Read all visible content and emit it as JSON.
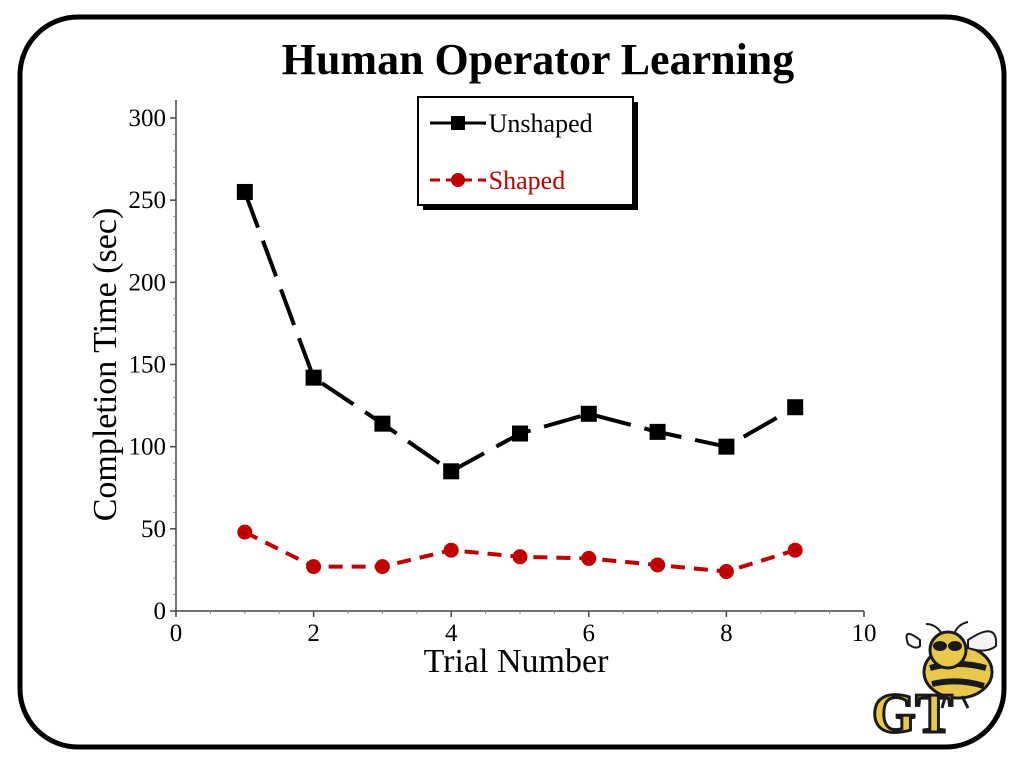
{
  "slide": {
    "title": "Human Operator Learning",
    "logo": {
      "name": "yellow-jacket-gt-logo",
      "text": "GT",
      "colors": [
        "#e8c84a",
        "#1a1a1a"
      ]
    }
  },
  "chart_data": {
    "type": "line",
    "title": "Human Operator Learning",
    "xlabel": "Trial Number",
    "ylabel": "Completion Time (sec)",
    "xlim": [
      0,
      10
    ],
    "ylim": [
      0,
      300
    ],
    "xticks": [
      0,
      2,
      4,
      6,
      8,
      10
    ],
    "yticks": [
      0,
      50,
      100,
      150,
      200,
      250,
      300
    ],
    "grid": false,
    "legend_position": "top-center",
    "series": [
      {
        "name": "Unshaped",
        "legend_label": "·Unshaped",
        "color": "#000000",
        "marker": "square",
        "line_style": "long-dash",
        "x": [
          1,
          2,
          3,
          4,
          5,
          6,
          7,
          8,
          9
        ],
        "y": [
          255,
          142,
          114,
          85,
          108,
          120,
          109,
          100,
          124
        ]
      },
      {
        "name": "Shaped",
        "legend_label": "·Shaped",
        "color": "#c00000",
        "marker": "circle",
        "line_style": "dash",
        "x": [
          1,
          2,
          3,
          4,
          5,
          6,
          7,
          8,
          9
        ],
        "y": [
          48,
          27,
          27,
          37,
          33,
          32,
          28,
          24,
          37
        ]
      }
    ]
  }
}
